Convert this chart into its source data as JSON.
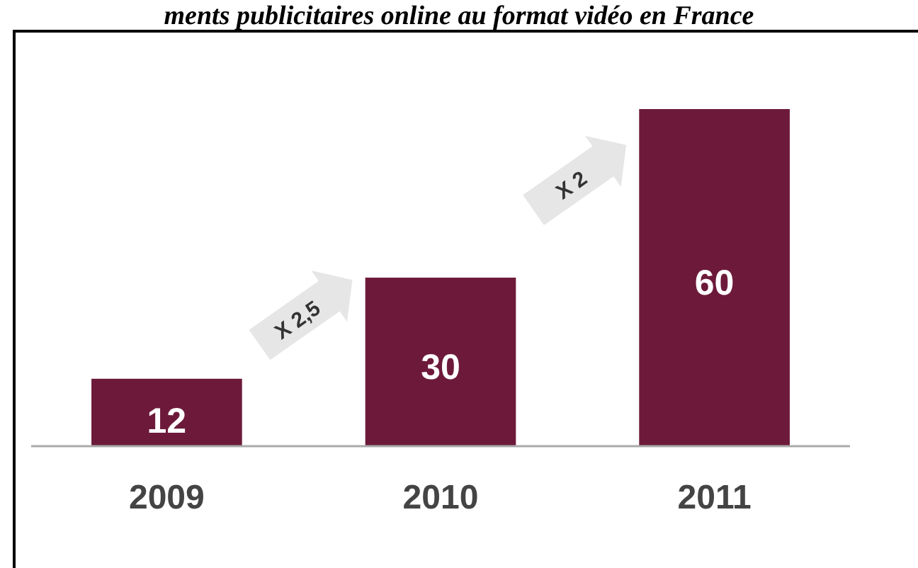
{
  "chart_data": {
    "type": "bar",
    "title": "ments publicitaires online au format vidéo en France",
    "categories": [
      "2009",
      "2010",
      "2011"
    ],
    "values": [
      12,
      30,
      60
    ],
    "color": "#6d1a3a",
    "data_labels": true,
    "annotations": [
      "X 2,5",
      "X 2"
    ]
  }
}
